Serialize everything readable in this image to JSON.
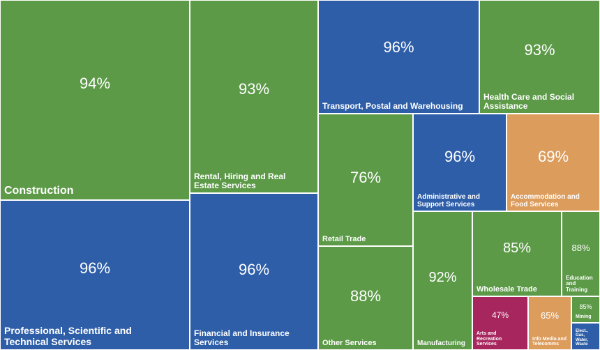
{
  "chart_data": {
    "type": "treemap",
    "value_unit": "%",
    "colors": {
      "green": "#5c9a48",
      "blue": "#2e5ea8",
      "orange": "#dc9c5c",
      "magenta": "#a8265e"
    },
    "items": [
      {
        "label": "Construction",
        "value": "94%",
        "color": "green"
      },
      {
        "label": "Rental, Hiring and Real Estate Services",
        "value": "93%",
        "color": "green"
      },
      {
        "label": "Transport, Postal and Warehousing",
        "value": "96%",
        "color": "blue"
      },
      {
        "label": "Health Care and Social Assistance",
        "value": "93%",
        "color": "green"
      },
      {
        "label": "Professional, Scientific and Technical Services",
        "value": "96%",
        "color": "blue"
      },
      {
        "label": "Financial and Insurance Services",
        "value": "96%",
        "color": "blue"
      },
      {
        "label": "Retail Trade",
        "value": "76%",
        "color": "green"
      },
      {
        "label": "Administrative and Support Services",
        "value": "96%",
        "color": "blue"
      },
      {
        "label": "Accommodation and Food Services",
        "value": "69%",
        "color": "orange"
      },
      {
        "label": "Other Services",
        "value": "88%",
        "color": "green"
      },
      {
        "label": "Manufacturing",
        "value": "92%",
        "color": "green"
      },
      {
        "label": "Wholesale Trade",
        "value": "85%",
        "color": "green"
      },
      {
        "label": "Education and Training",
        "value": "88%",
        "color": "green"
      },
      {
        "label": "Arts and Recreation Services",
        "value": "47%",
        "color": "magenta"
      },
      {
        "label": "Info Media and Telecomms",
        "value": "65%",
        "color": "orange"
      },
      {
        "label": "Mining",
        "value": "85%",
        "color": "green"
      },
      {
        "label": "Elect., Gas, Water, Waste",
        "value": "",
        "color": "blue"
      }
    ]
  }
}
